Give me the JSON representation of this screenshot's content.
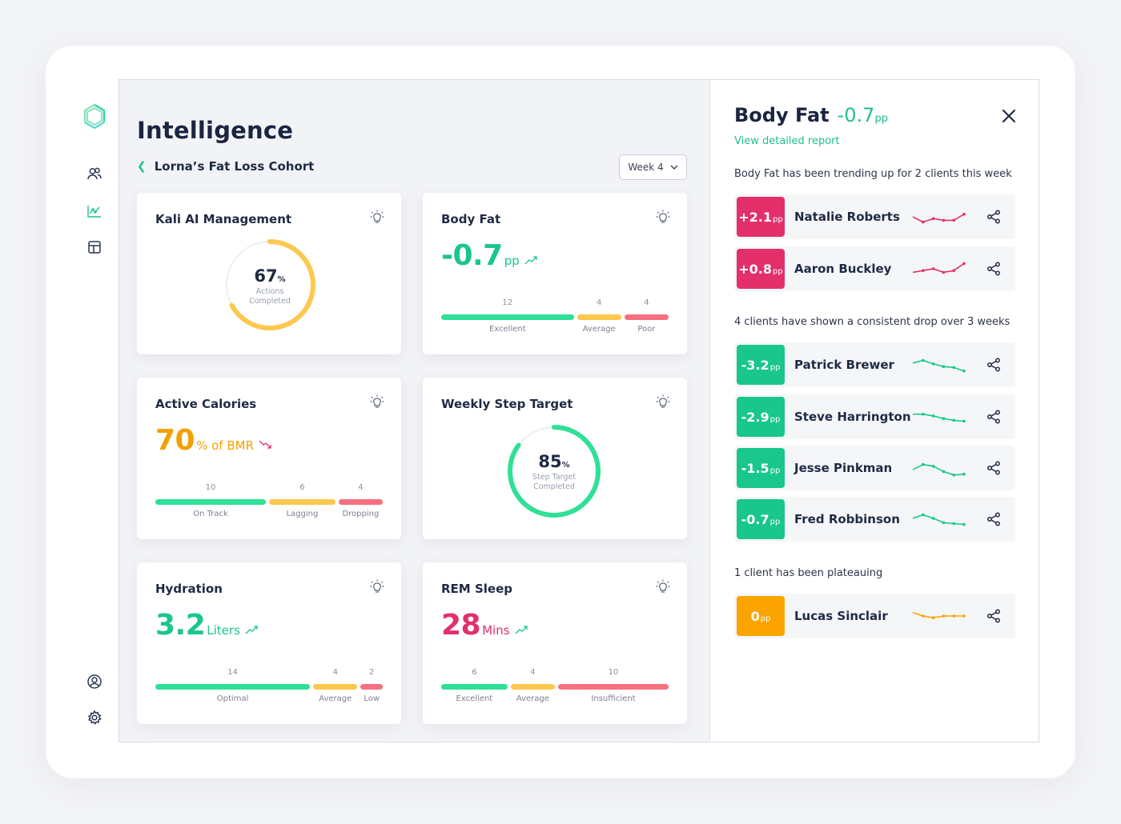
{
  "app": {
    "logo_icon": "hexagon-logo-icon"
  },
  "sidebar": {
    "items": [
      {
        "name": "clients",
        "icon": "users-icon"
      },
      {
        "name": "analytics",
        "icon": "chart-icon",
        "active": true
      },
      {
        "name": "layout",
        "icon": "layout-icon"
      },
      {
        "name": "profile",
        "icon": "user-circle-icon"
      },
      {
        "name": "settings",
        "icon": "gear-icon"
      }
    ]
  },
  "header": {
    "title": "Intelligence",
    "breadcrumb": "Lorna’s Fat Loss Cohort",
    "week_select": "Week 4"
  },
  "cards": {
    "kali": {
      "title": "Kali AI Management",
      "value": "67",
      "unit": "%",
      "sub1": "Actions",
      "sub2": "Completed",
      "progress": 0.67,
      "color": "#fcc84d"
    },
    "body_fat": {
      "title": "Body Fat",
      "value": "-0.7",
      "unit": "pp",
      "segments": [
        {
          "count": "12",
          "label": "Excellent",
          "color": "#2fe096"
        },
        {
          "count": "4",
          "label": "Average",
          "color": "#fcc84d"
        },
        {
          "count": "4",
          "label": "Poor",
          "color": "#f6707f"
        }
      ]
    },
    "active_calories": {
      "title": "Active Calories",
      "value": "70",
      "unit": "% of BMR",
      "segments": [
        {
          "count": "10",
          "label": "On Track",
          "color": "#2fe096"
        },
        {
          "count": "6",
          "label": "Lagging",
          "color": "#fcc84d"
        },
        {
          "count": "4",
          "label": "Dropping",
          "color": "#f6707f"
        }
      ]
    },
    "steps": {
      "title": "Weekly Step Target",
      "value": "85",
      "unit": "%",
      "sub1": "Step Target",
      "sub2": "Completed",
      "progress": 0.85,
      "color": "#2fe096"
    },
    "hydration": {
      "title": "Hydration",
      "value": "3.2",
      "unit": "Liters",
      "segments": [
        {
          "count": "14",
          "label": "Optimal",
          "color": "#2fe096"
        },
        {
          "count": "4",
          "label": "Average",
          "color": "#fcc84d"
        },
        {
          "count": "2",
          "label": "Low",
          "color": "#f6707f"
        }
      ]
    },
    "rem": {
      "title": "REM Sleep",
      "value": "28",
      "unit": "Mins",
      "segments": [
        {
          "count": "6",
          "label": "Excellent",
          "color": "#2fe096"
        },
        {
          "count": "4",
          "label": "Average",
          "color": "#fcc84d"
        },
        {
          "count": "10",
          "label": "Insufficient",
          "color": "#f6707f"
        }
      ]
    }
  },
  "panel": {
    "title": "Body Fat",
    "value": "-0.7",
    "unit": "pp",
    "report_link": "View detailed report",
    "sections": [
      "Body Fat has been trending up for 2 clients this week",
      "4 clients have shown a consistent drop over 3 weeks",
      "1 client has been plateauing"
    ],
    "clients": [
      {
        "value": "+2.1",
        "unit": "pp",
        "name": "Natalie Roberts",
        "color": "#e3306a",
        "spark": [
          0.5,
          0.2,
          0.4,
          0.3,
          0.3,
          0.65
        ]
      },
      {
        "value": "+0.8",
        "unit": "pp",
        "name": "Aaron Buckley",
        "color": "#e3306a",
        "spark": [
          0.3,
          0.4,
          0.5,
          0.3,
          0.4,
          0.8
        ]
      },
      {
        "value": "-3.2",
        "unit": "pp",
        "name": "Patrick Brewer",
        "color": "#19c68c",
        "spark": [
          0.6,
          0.75,
          0.55,
          0.4,
          0.35,
          0.15
        ]
      },
      {
        "value": "-2.9",
        "unit": "pp",
        "name": "Steve Harrington",
        "color": "#19c68c",
        "spark": [
          0.65,
          0.65,
          0.55,
          0.4,
          0.3,
          0.25
        ]
      },
      {
        "value": "-1.5",
        "unit": "pp",
        "name": "Jesse Pinkman",
        "color": "#19c68c",
        "spark": [
          0.4,
          0.7,
          0.6,
          0.3,
          0.1,
          0.15
        ]
      },
      {
        "value": "-0.7",
        "unit": "pp",
        "name": "Fred Robbinson",
        "color": "#19c68c",
        "spark": [
          0.55,
          0.75,
          0.55,
          0.3,
          0.25,
          0.2
        ]
      },
      {
        "value": "0",
        "unit": "pp",
        "name": "Lucas Sinclair",
        "color": "#fba400",
        "spark": [
          0.7,
          0.5,
          0.4,
          0.5,
          0.5,
          0.5
        ]
      }
    ]
  }
}
